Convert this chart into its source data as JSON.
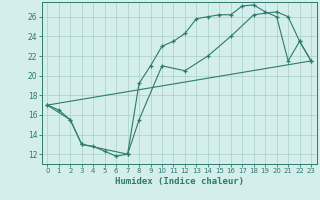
{
  "xlabel": "Humidex (Indice chaleur)",
  "ylabel": "",
  "xlim": [
    -0.5,
    23.5
  ],
  "ylim": [
    11.0,
    27.5
  ],
  "xticks": [
    0,
    1,
    2,
    3,
    4,
    5,
    6,
    7,
    8,
    9,
    10,
    11,
    12,
    13,
    14,
    15,
    16,
    17,
    18,
    19,
    20,
    21,
    22,
    23
  ],
  "yticks": [
    12,
    14,
    16,
    18,
    20,
    22,
    24,
    26
  ],
  "background_color": "#d4eeec",
  "grid_color": "#aacfcc",
  "line_color": "#2d7a6e",
  "line1_x": [
    0,
    1,
    2,
    3,
    4,
    5,
    6,
    7,
    8,
    9,
    10,
    11,
    12,
    13,
    14,
    15,
    16,
    17,
    18,
    19,
    20,
    21,
    22,
    23
  ],
  "line1_y": [
    17.0,
    16.5,
    15.5,
    13.0,
    12.8,
    12.3,
    11.8,
    12.0,
    19.2,
    21.0,
    23.0,
    23.5,
    24.3,
    25.8,
    26.0,
    26.2,
    26.2,
    27.1,
    27.2,
    26.5,
    26.0,
    21.5,
    23.5,
    21.5
  ],
  "line2_x": [
    0,
    2,
    3,
    7,
    8,
    10,
    12,
    14,
    16,
    18,
    20,
    21,
    22,
    23
  ],
  "line2_y": [
    17.0,
    15.5,
    13.0,
    12.0,
    15.5,
    21.0,
    20.5,
    22.0,
    24.0,
    26.2,
    26.5,
    26.0,
    23.5,
    21.5
  ],
  "line3_x": [
    0,
    23
  ],
  "line3_y": [
    17.0,
    21.5
  ]
}
